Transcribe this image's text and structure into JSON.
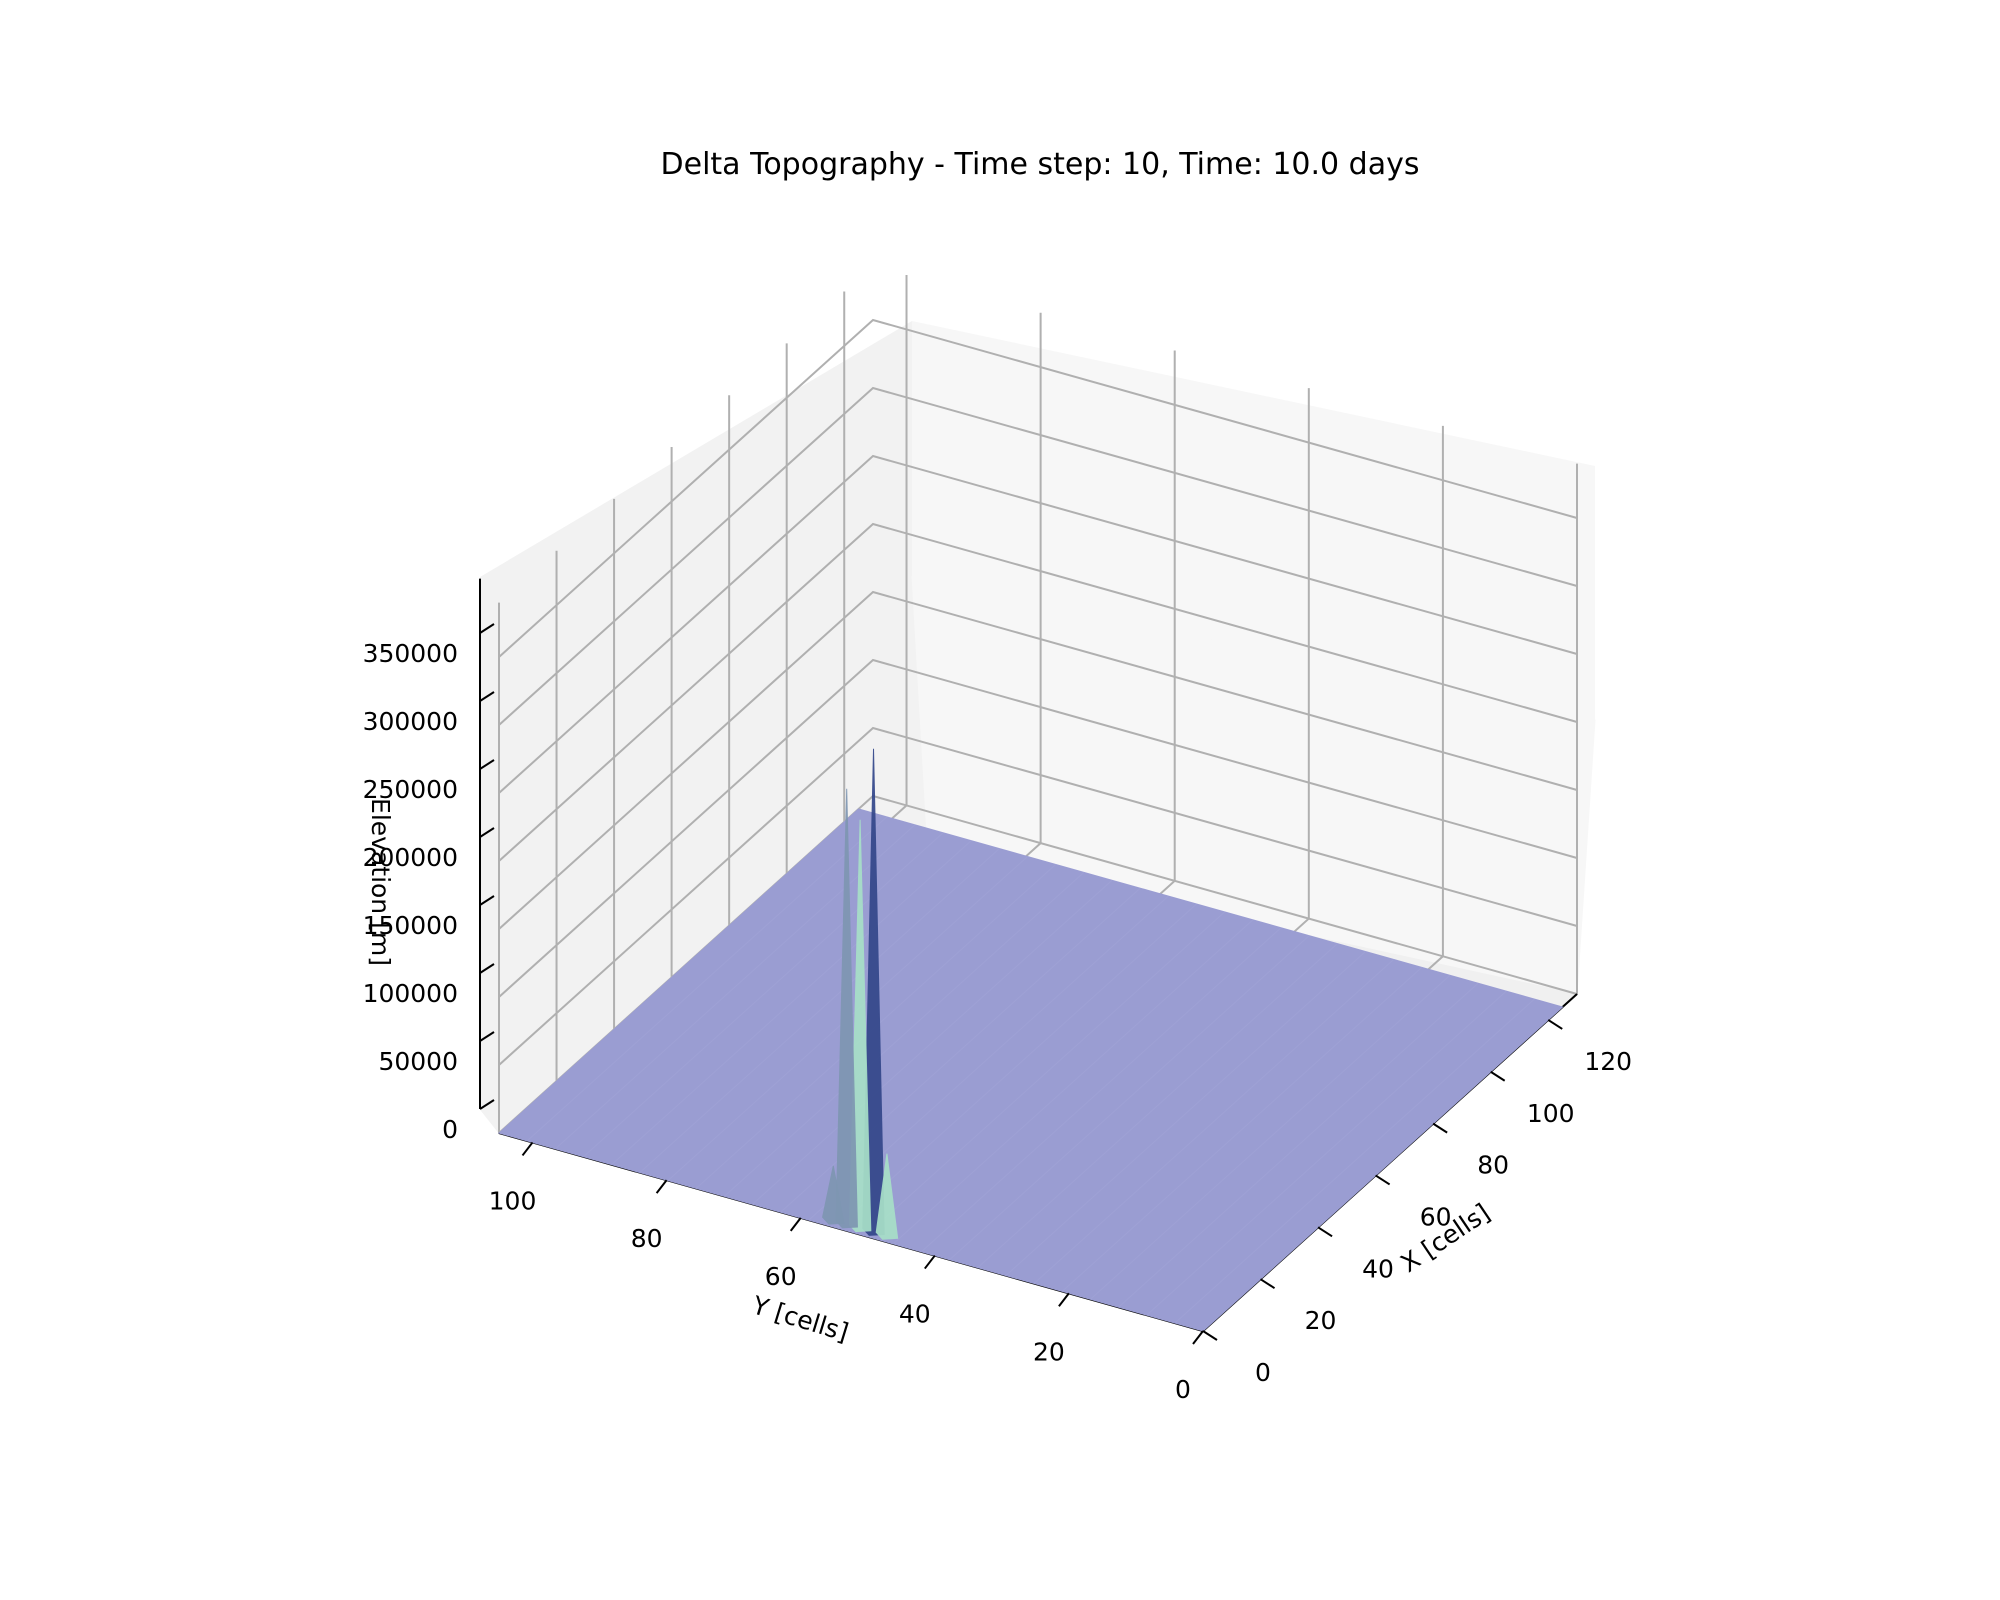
{
  "chart_data": {
    "type": "surface3d",
    "title": "Delta Topography - Time step: 10, Time: 10.0 days",
    "xlabel": "X [cells]",
    "ylabel": "Y [cells]",
    "zlabel": "Elevation [m]",
    "xlim": [
      0,
      130
    ],
    "ylim": [
      0,
      105
    ],
    "zlim": [
      0,
      390000
    ],
    "xticks": [
      0,
      20,
      40,
      60,
      80,
      100,
      120
    ],
    "yticks": [
      0,
      20,
      40,
      60,
      80,
      100
    ],
    "zticks": [
      0,
      50000,
      100000,
      150000,
      200000,
      250000,
      300000,
      350000
    ],
    "xtick_labels": [
      "0",
      "20",
      "40",
      "60",
      "80",
      "100",
      "120"
    ],
    "ytick_labels": [
      "0",
      "20",
      "40",
      "60",
      "80",
      "100"
    ],
    "ztick_labels": [
      "0",
      "50000",
      "100000",
      "150000",
      "200000",
      "250000",
      "300000",
      "350000"
    ],
    "grid": true,
    "surface": {
      "base_elevation": 0,
      "x_extent": [
        0,
        125
      ],
      "y_extent": [
        0,
        105
      ],
      "colors": {
        "flat": "#9a9dd2",
        "spike_light": "#a8e0c8",
        "spike_dark": "#33478a",
        "spike_mid": "#7e96b2"
      }
    },
    "peaks": [
      {
        "x": 2,
        "y": 50,
        "z": 355000
      },
      {
        "x": 2,
        "y": 52,
        "z": 300000
      },
      {
        "x": 2,
        "y": 54,
        "z": 320000
      },
      {
        "x": 2,
        "y": 48,
        "z": 60000
      },
      {
        "x": 2,
        "y": 56,
        "z": 40000
      }
    ]
  }
}
